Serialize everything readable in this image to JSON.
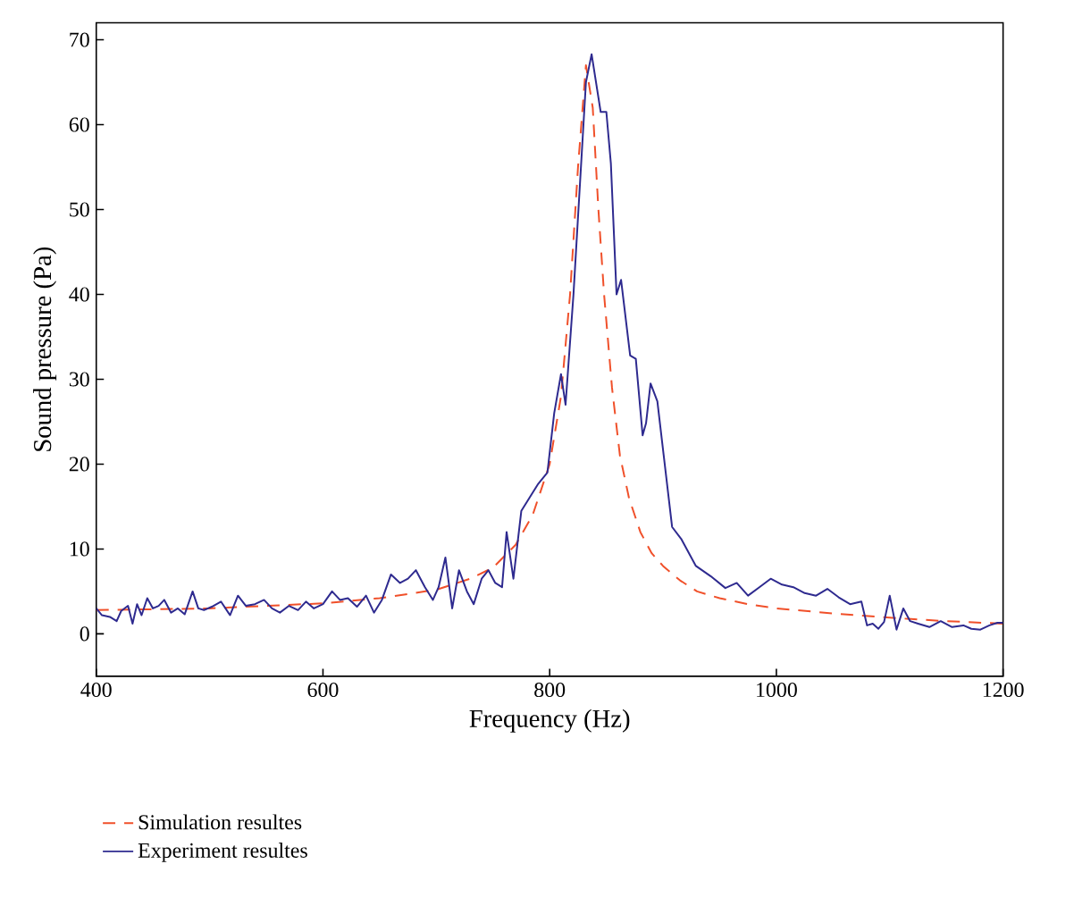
{
  "chart_data": {
    "type": "line",
    "xlabel": "Frequency (Hz)",
    "ylabel": "Sound pressure (Pa)",
    "xlim": [
      400,
      1200
    ],
    "ylim": [
      -5,
      72
    ],
    "xticks": [
      400,
      600,
      800,
      1000,
      1200
    ],
    "yticks": [
      0,
      10,
      20,
      30,
      40,
      50,
      60,
      70
    ],
    "grid": false,
    "legend": "bottom",
    "series": [
      {
        "name": "Simulation resultes",
        "color": "#f0502a",
        "line_style": "dashed",
        "x": [
          400,
          500,
          600,
          650,
          700,
          730,
          750,
          770,
          785,
          800,
          810,
          818,
          825,
          832,
          838,
          843,
          848,
          855,
          862,
          870,
          880,
          890,
          900,
          915,
          930,
          950,
          975,
          1000,
          1050,
          1100,
          1150,
          1200
        ],
        "values": [
          2.8,
          3,
          3.6,
          4.2,
          5.2,
          6.5,
          7.8,
          10.5,
          14,
          20,
          28,
          40,
          55,
          67,
          62,
          50,
          40,
          29,
          21,
          16,
          12,
          9.5,
          8,
          6.3,
          5,
          4.2,
          3.5,
          3,
          2.4,
          1.9,
          1.5,
          1.2
        ]
      },
      {
        "name": "Experiment resultes",
        "color": "#2e2a8f",
        "line_style": "solid",
        "x": [
          400,
          405,
          412,
          418,
          422,
          428,
          432,
          436,
          440,
          445,
          450,
          455,
          460,
          466,
          472,
          478,
          485,
          490,
          495,
          502,
          510,
          518,
          525,
          532,
          540,
          548,
          555,
          562,
          570,
          578,
          585,
          592,
          600,
          608,
          615,
          622,
          630,
          638,
          645,
          652,
          660,
          668,
          675,
          682,
          690,
          697,
          702,
          708,
          714,
          720,
          727,
          733,
          740,
          746,
          752,
          758,
          762,
          768,
          775,
          782,
          790,
          798,
          804,
          810,
          814,
          821,
          832,
          837,
          845,
          850,
          854,
          859,
          863,
          871,
          876,
          882,
          885,
          889,
          895,
          908,
          916,
          929,
          942,
          955,
          965,
          975,
          985,
          995,
          1005,
          1015,
          1025,
          1035,
          1045,
          1055,
          1065,
          1075,
          1080,
          1085,
          1090,
          1095,
          1100,
          1106,
          1112,
          1118,
          1125,
          1135,
          1145,
          1155,
          1165,
          1172,
          1180,
          1188,
          1195,
          1200
        ],
        "values": [
          3,
          2.2,
          2,
          1.5,
          2.7,
          3.3,
          1.2,
          3.5,
          2.2,
          4.2,
          3,
          3.3,
          4,
          2.5,
          3,
          2.3,
          5,
          3,
          2.8,
          3.2,
          3.8,
          2.2,
          4.5,
          3.3,
          3.5,
          4,
          3,
          2.5,
          3.3,
          2.8,
          3.8,
          3,
          3.5,
          5,
          4,
          4.2,
          3.2,
          4.5,
          2.5,
          4,
          7,
          6,
          6.5,
          7.5,
          5.5,
          4,
          5.5,
          9,
          3,
          7.5,
          5,
          3.5,
          6.5,
          7.5,
          6,
          5.5,
          12,
          6.5,
          14.5,
          16,
          17.7,
          19,
          26,
          30.6,
          27,
          40,
          65,
          68.3,
          61.5,
          61.5,
          55.4,
          40,
          41.7,
          32.8,
          32.4,
          23.4,
          24.8,
          29.5,
          27.4,
          12.6,
          11.2,
          8,
          6.8,
          5.4,
          6,
          4.5,
          5.5,
          6.5,
          5.8,
          5.5,
          4.8,
          4.5,
          5.3,
          4.3,
          3.5,
          3.8,
          1,
          1.2,
          0.6,
          1.4,
          4.5,
          0.5,
          3,
          1.5,
          1.2,
          0.8,
          1.5,
          0.8,
          1,
          0.6,
          0.5,
          1,
          1.3,
          1.3
        ]
      }
    ]
  }
}
